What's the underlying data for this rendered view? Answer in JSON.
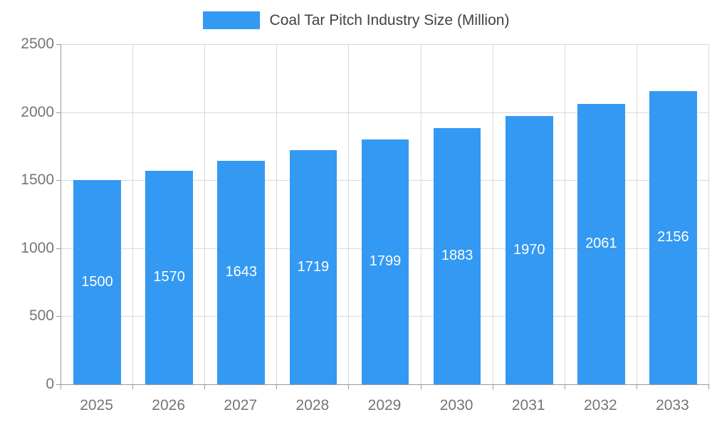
{
  "chart_data": {
    "type": "bar",
    "title": "Coal Tar Pitch Industry Size (Million)",
    "categories": [
      "2025",
      "2026",
      "2027",
      "2028",
      "2029",
      "2030",
      "2031",
      "2032",
      "2033"
    ],
    "values": [
      1500,
      1570,
      1643,
      1719,
      1799,
      1883,
      1970,
      2061,
      2156
    ],
    "xlabel": "",
    "ylabel": "",
    "ylim": [
      0,
      2500
    ],
    "yticks": [
      0,
      500,
      1000,
      1500,
      2000,
      2500
    ],
    "grid": "on",
    "legend_position": "top-center",
    "bar_color": "#3399f2",
    "bar_label_color": "#ffffff",
    "data_labels_inside_bars": true
  },
  "legend": {
    "label": "Coal Tar Pitch Industry Size (Million)",
    "swatch_color": "#3399f2"
  }
}
